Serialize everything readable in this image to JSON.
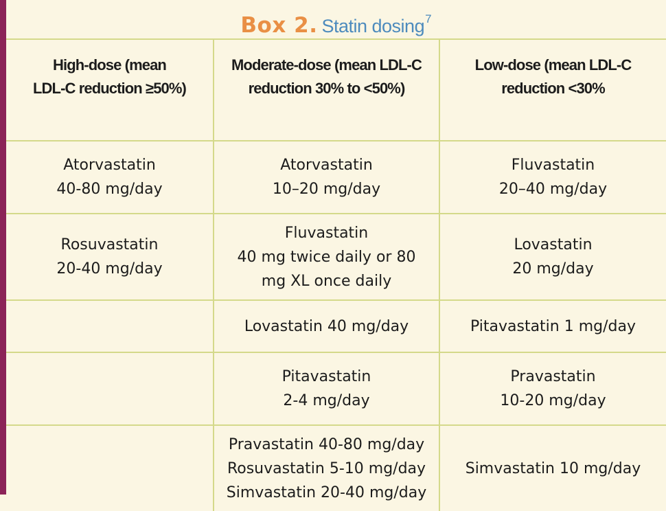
{
  "box": {
    "label": "Box 2.",
    "title": "Statin dosing",
    "reference": "7"
  },
  "headers": {
    "high": [
      "High-dose (mean",
      "LDL-C reduction ≥50%)"
    ],
    "moderate": [
      "Moderate-dose (mean LDL-C",
      "reduction 30% to <50%)"
    ],
    "low": [
      "Low-dose (mean LDL-C",
      "reduction <30%"
    ]
  },
  "rows": [
    {
      "high": [
        "Atorvastatin",
        "40-80 mg/day"
      ],
      "moderate": [
        "Atorvastatin",
        "10–20 mg/day"
      ],
      "low": [
        "Fluvastatin",
        "20–40 mg/day"
      ]
    },
    {
      "high": [
        "Rosuvastatin",
        "20-40 mg/day"
      ],
      "moderate": [
        "Fluvastatin",
        "40 mg twice daily or 80",
        "mg XL once daily"
      ],
      "low": [
        "Lovastatin",
        "20 mg/day"
      ]
    },
    {
      "high": [],
      "moderate": [
        "Lovastatin 40 mg/day"
      ],
      "low": [
        "Pitavastatin 1 mg/day"
      ]
    },
    {
      "high": [],
      "moderate": [
        "Pitavastatin",
        "2-4 mg/day"
      ],
      "low": [
        "Pravastatin",
        "10-20 mg/day"
      ]
    },
    {
      "high": [],
      "moderate": [
        "Pravastatin 40-80 mg/day",
        "Rosuvastatin 5-10 mg/day",
        "Simvastatin 20-40 mg/day"
      ],
      "low": [
        "Simvastatin 10 mg/day"
      ]
    }
  ]
}
